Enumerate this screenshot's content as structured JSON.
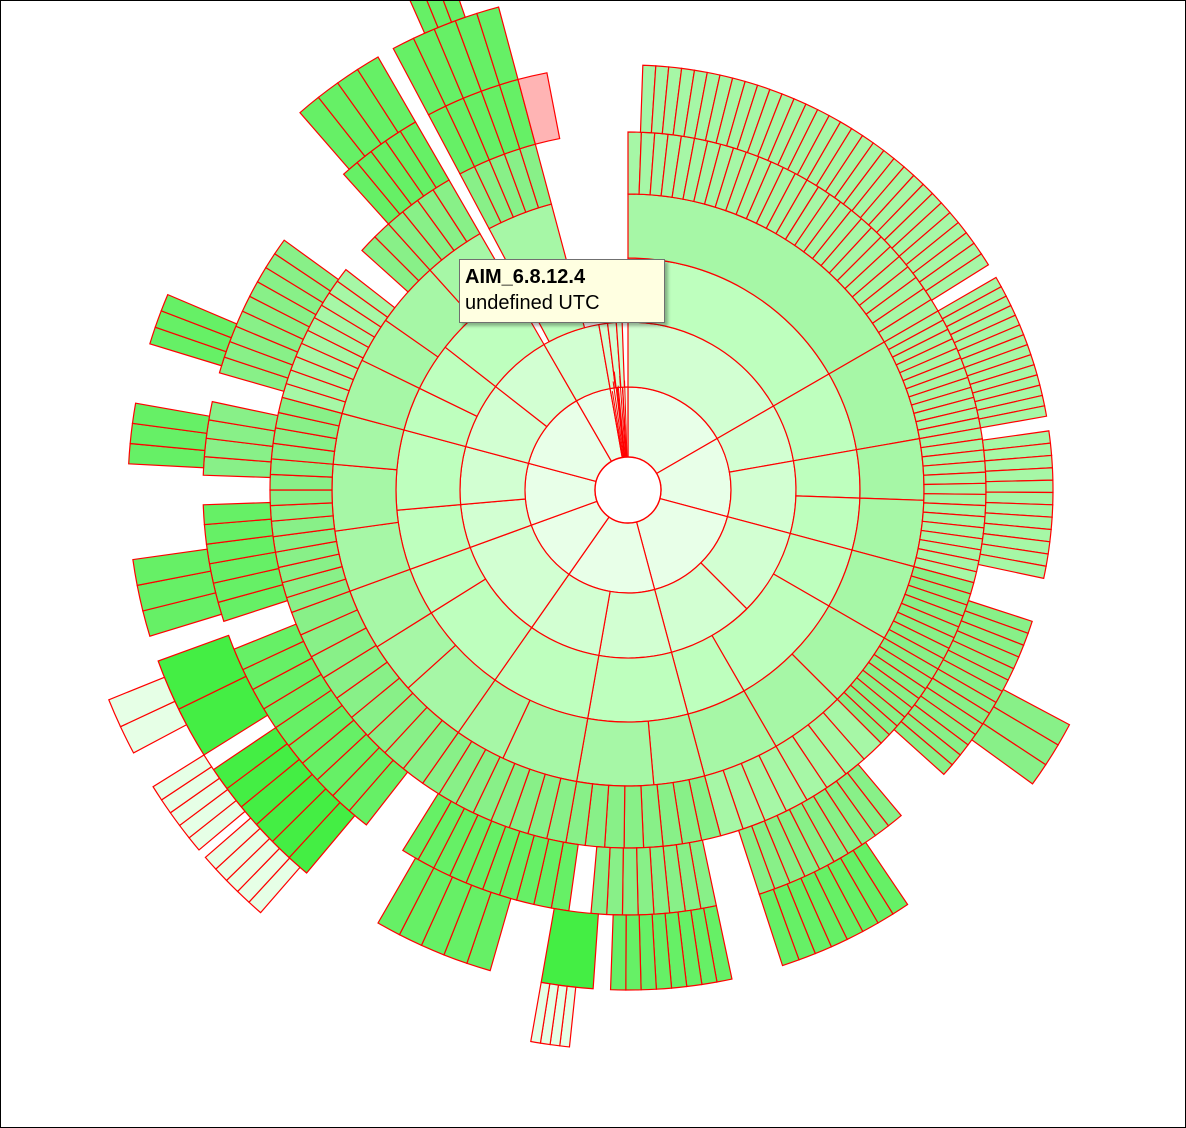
{
  "tooltip": {
    "title": "AIM_6.8.12.4",
    "subtitle": "undefined UTC"
  },
  "colors": {
    "stroke": "#ff0000",
    "background": "#ffffff",
    "tooltip_bg": "#ffffe1",
    "depth_fills": [
      "#e8ffe8",
      "#d2ffd2",
      "#beffbe",
      "#a6f7a6",
      "#88f088",
      "#66f066",
      "#44ee44",
      "#e6ffe6"
    ],
    "highlight": "#ffb4b4"
  },
  "chart_data": {
    "type": "sunburst",
    "levels": 7,
    "rings": [
      {
        "depth": 1,
        "segments": [
          0.76,
          0.55,
          0.83,
          0.81,
          0.66,
          0.46,
          0.84,
          0.83,
          0.06,
          0.06,
          0.06,
          0.05
        ]
      },
      {
        "depth": 2,
        "segments": [
          0.72,
          1.01,
          0.54,
          0.83,
          0.81,
          0.66,
          0.46,
          0.84,
          0.42,
          0.41,
          0.06,
          0.06,
          0.06,
          0.05
        ]
      },
      {
        "depth": 3,
        "segments": [
          1.52,
          0.55,
          0.83,
          0.34,
          0.46,
          0.66,
          0.46,
          0.84,
          0.84,
          0.2
        ]
      },
      {
        "depth": 4,
        "segments": [
          1.52,
          0.55,
          0.55,
          0.34,
          0.46,
          0.66,
          0.46,
          0.84,
          0.84
        ]
      },
      {
        "depth": 5,
        "segments": [
          1.5,
          0.55,
          0.34,
          0.46,
          0.3,
          0.45,
          0.5,
          0.5
        ]
      },
      {
        "depth": 6,
        "segments": [
          0.25,
          0.18,
          0.16,
          0.14,
          0.16,
          0.3,
          0.12,
          0.2,
          0.3,
          0.3
        ]
      },
      {
        "depth": 7,
        "segments": [
          0.1,
          0.12,
          0.12,
          0.12,
          0.08
        ]
      }
    ]
  }
}
